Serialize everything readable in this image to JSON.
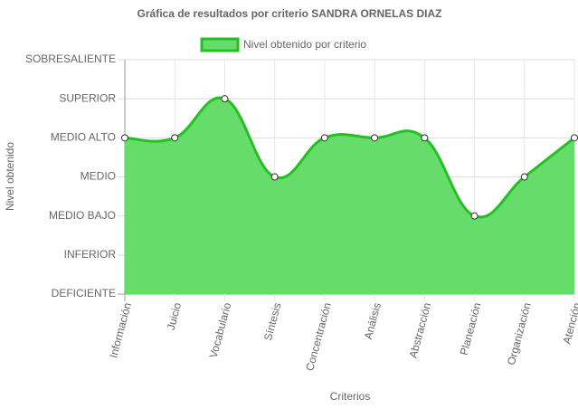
{
  "chart_data": {
    "type": "area",
    "title": "Gráfica de resultados por criterio SANDRA ORNELAS DIAZ",
    "x_label": "Criterios",
    "y_label": "Nivel obtenido",
    "categories": [
      "Información",
      "Juicio",
      "Vocabulario",
      "Síntesis",
      "Concentración",
      "Análisis",
      "Abstracción",
      "Planeación",
      "Organización",
      "Atención"
    ],
    "series": [
      {
        "name": "Nivel obtenido por criterio",
        "color": "#22c122",
        "fill": "#66dd6a",
        "values": [
          4,
          4,
          5,
          3,
          4,
          4,
          4,
          2,
          3,
          4
        ]
      }
    ],
    "ylim": [
      0,
      6
    ],
    "yticks": [
      {
        "value": 0,
        "label": "DEFICIENTE"
      },
      {
        "value": 1,
        "label": "INFERIOR"
      },
      {
        "value": 2,
        "label": "MEDIO BAJO"
      },
      {
        "value": 3,
        "label": "MEDIO"
      },
      {
        "value": 4,
        "label": "MEDIO ALTO"
      },
      {
        "value": 5,
        "label": "SUPERIOR"
      },
      {
        "value": 6,
        "label": "SOBRESALIENTE"
      }
    ],
    "grid": true,
    "legend": "top"
  }
}
